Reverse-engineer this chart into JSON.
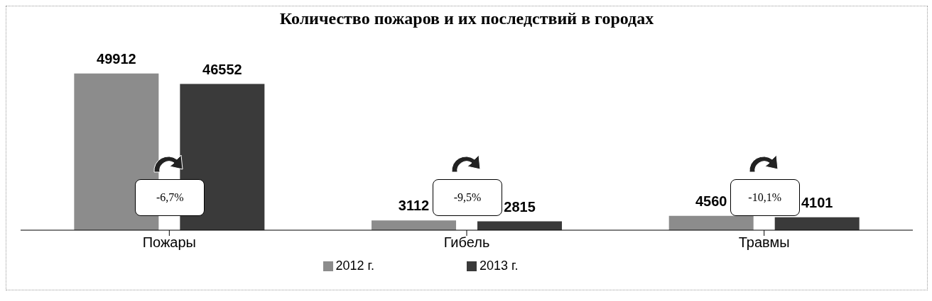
{
  "chart_data": {
    "type": "bar",
    "title": "Количество пожаров и их последствий в городах",
    "categories": [
      "Пожары",
      "Гибель",
      "Травмы"
    ],
    "series": [
      {
        "name": "2012 г.",
        "color": "#8c8c8c",
        "values": [
          49912,
          3112,
          4560
        ]
      },
      {
        "name": "2013 г.",
        "color": "#3a3a3a",
        "values": [
          46552,
          2815,
          4101
        ]
      }
    ],
    "data_labels": true,
    "legend": "bottom",
    "grid": false,
    "annotations": [
      "-6,7%",
      "-9,5%",
      "-10,1%"
    ]
  }
}
